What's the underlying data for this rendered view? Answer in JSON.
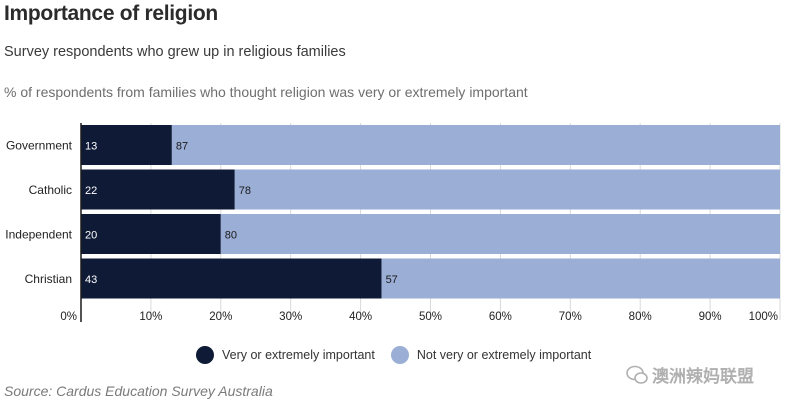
{
  "title": "Importance of religion",
  "subtitle": "Survey respondents who grew up in religious families",
  "note": "% of respondents from families who thought religion was very or extremely important",
  "source": "Source: Cardus Education Survey Australia",
  "watermark": "澳洲辣妈联盟",
  "colors": {
    "important": "#0e1a36",
    "not_important": "#9aaed6"
  },
  "chart_data": {
    "type": "bar",
    "orientation": "horizontal",
    "stacked": true,
    "categories": [
      "Government",
      "Catholic",
      "Independent",
      "Christian"
    ],
    "series": [
      {
        "name": "Very or extremely important",
        "values": [
          13,
          22,
          20,
          43
        ]
      },
      {
        "name": "Not very or extremely important",
        "values": [
          87,
          78,
          80,
          57
        ]
      }
    ],
    "xlim": [
      0,
      100
    ],
    "x_ticks": [
      "0%",
      "10%",
      "20%",
      "30%",
      "40%",
      "50%",
      "60%",
      "70%",
      "80%",
      "90%",
      "100%"
    ],
    "legend_position": "bottom",
    "grid": true
  }
}
